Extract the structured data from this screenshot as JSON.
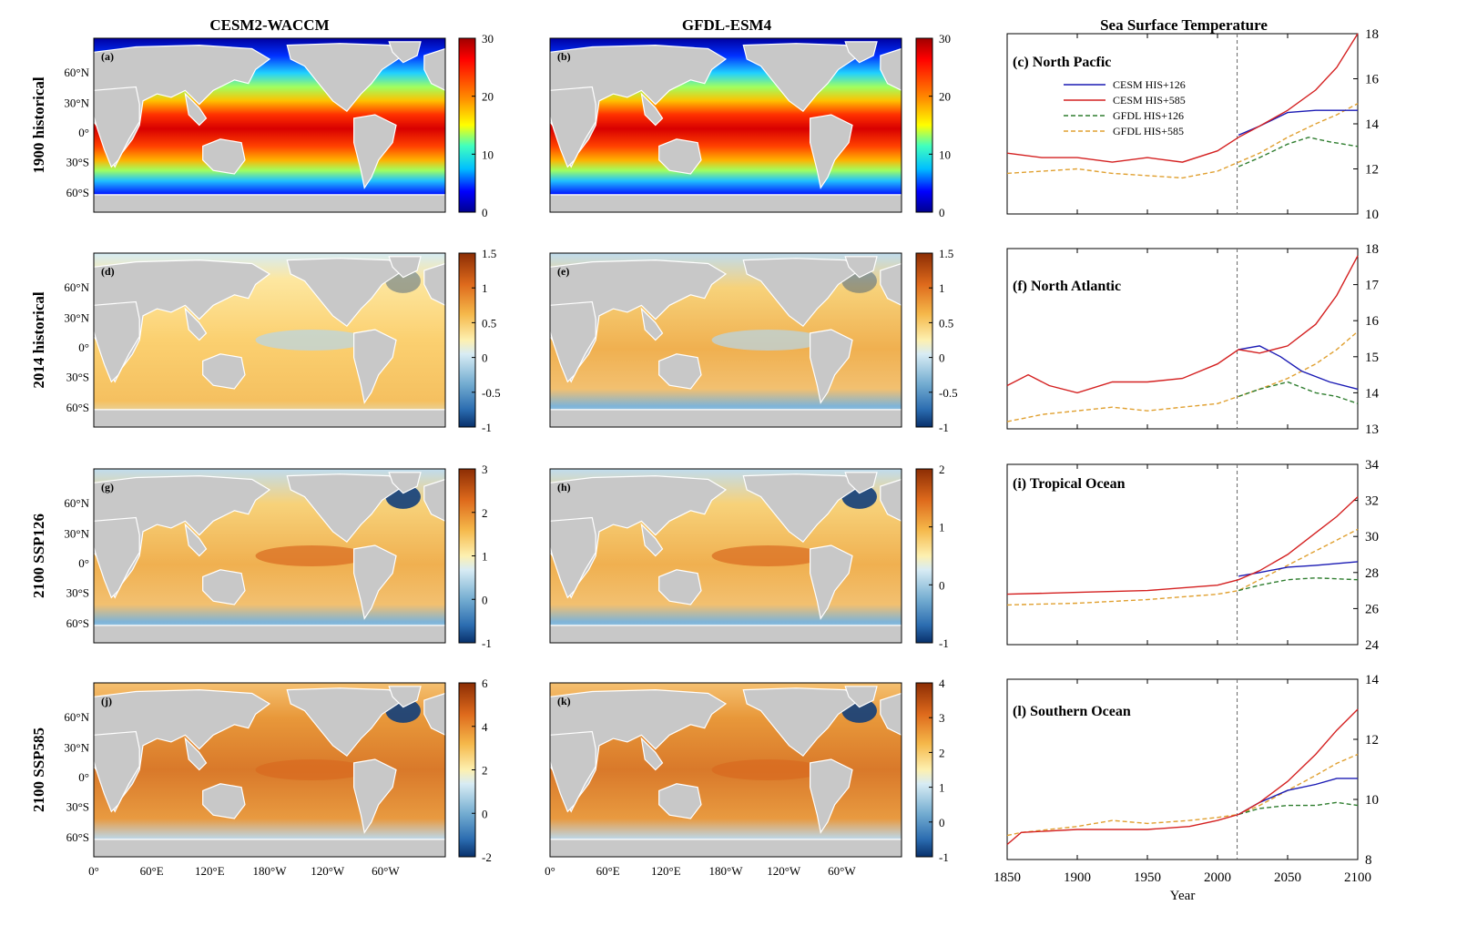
{
  "figure": {
    "col_titles": [
      "CESM2-WACCM",
      "GFDL-ESM4",
      "Sea Surface Temperature"
    ],
    "row_labels": [
      "1900 historical",
      "2014 historical",
      "2100 SSP126",
      "2100 SSP585"
    ],
    "map_lat_labels": [
      "60°N",
      "30°N",
      "0°",
      "30°S",
      "60°S"
    ],
    "map_lon_labels": [
      "0°",
      "60°E",
      "120°E",
      "180°W",
      "120°W",
      "60°W"
    ],
    "panels": [
      {
        "letter": "(a)",
        "model": "CESM2-WACCM",
        "row": "1900 historical",
        "cbar": [
          "30",
          "20",
          "10",
          "0"
        ],
        "cmap": "jet"
      },
      {
        "letter": "(b)",
        "model": "GFDL-ESM4",
        "row": "1900 historical",
        "cbar": [
          "30",
          "20",
          "10",
          "0"
        ],
        "cmap": "jet"
      },
      {
        "letter": "(d)",
        "model": "CESM2-WACCM",
        "row": "2014 historical",
        "cbar": [
          "1.5",
          "1",
          "0.5",
          "0",
          "-0.5",
          "-1"
        ],
        "cmap": "div"
      },
      {
        "letter": "(e)",
        "model": "GFDL-ESM4",
        "row": "2014 historical",
        "cbar": [
          "1.5",
          "1",
          "0.5",
          "0",
          "-0.5",
          "-1"
        ],
        "cmap": "div"
      },
      {
        "letter": "(g)",
        "model": "CESM2-WACCM",
        "row": "2100 SSP126",
        "cbar": [
          "3",
          "2",
          "1",
          "0",
          "-1"
        ],
        "cmap": "div"
      },
      {
        "letter": "(h)",
        "model": "GFDL-ESM4",
        "row": "2100 SSP126",
        "cbar": [
          "2",
          "1",
          "0",
          "-1"
        ],
        "cmap": "div"
      },
      {
        "letter": "(j)",
        "model": "CESM2-WACCM",
        "row": "2100 SSP585",
        "cbar": [
          "6",
          "4",
          "2",
          "0",
          "-2"
        ],
        "cmap": "div"
      },
      {
        "letter": "(k)",
        "model": "GFDL-ESM4",
        "row": "2100 SSP585",
        "cbar": [
          "4",
          "3",
          "2",
          "1",
          "0",
          "-1"
        ],
        "cmap": "div"
      }
    ]
  },
  "colors": {
    "cesm126": "#1a1ab4",
    "cesm585": "#d42020",
    "gfdl126": "#2e7d2e",
    "gfdl585": "#e0a030",
    "land": "#c8c8c8",
    "jet": [
      "#00008f",
      "#0000ff",
      "#00bfff",
      "#40ffbf",
      "#ffff00",
      "#ff8000",
      "#ff0000",
      "#a00000"
    ],
    "diverging": [
      "#08306b",
      "#2166ac",
      "#67a9cf",
      "#d1e5f0",
      "#fdf5c0",
      "#fddc70",
      "#f5a13c",
      "#de6a1c",
      "#a33a0e"
    ]
  },
  "chart_data": [
    {
      "type": "line",
      "title": "(c) North Pacfic",
      "xlabel": "Year",
      "ylabel": "",
      "xlim": [
        1850,
        2100
      ],
      "ylim": [
        10,
        18
      ],
      "yticks": [
        "10",
        "12",
        "14",
        "16",
        "18"
      ],
      "xticks": [
        "1850",
        "1900",
        "1950",
        "2000",
        "2050",
        "2100"
      ],
      "legend": [
        "CESM HIS+126",
        "CESM HIS+585",
        "GFDL HIS+126",
        "GFDL HIS+585"
      ],
      "series": [
        {
          "name": "CESM HIS+126",
          "x": [
            2015,
            2030,
            2050,
            2070,
            2100
          ],
          "values": [
            13.5,
            13.9,
            14.5,
            14.6,
            14.6
          ]
        },
        {
          "name": "CESM HIS+585",
          "x": [
            1850,
            1875,
            1900,
            1925,
            1950,
            1975,
            2000,
            2015,
            2030,
            2050,
            2070,
            2085,
            2100
          ],
          "values": [
            12.7,
            12.5,
            12.5,
            12.3,
            12.5,
            12.3,
            12.8,
            13.4,
            13.9,
            14.6,
            15.5,
            16.5,
            18.0
          ]
        },
        {
          "name": "GFDL HIS+126",
          "x": [
            2015,
            2030,
            2050,
            2065,
            2080,
            2100
          ],
          "values": [
            12.1,
            12.5,
            13.1,
            13.4,
            13.2,
            13.0
          ]
        },
        {
          "name": "GFDL HIS+585",
          "x": [
            1850,
            1875,
            1900,
            1925,
            1950,
            1975,
            2000,
            2015,
            2030,
            2050,
            2070,
            2085,
            2100
          ],
          "values": [
            11.8,
            11.9,
            12.0,
            11.8,
            11.7,
            11.6,
            11.9,
            12.3,
            12.7,
            13.4,
            14.0,
            14.4,
            14.9
          ]
        }
      ]
    },
    {
      "type": "line",
      "title": "(f) North Atlantic",
      "xlabel": "Year",
      "ylabel": "",
      "xlim": [
        1850,
        2100
      ],
      "ylim": [
        13,
        18
      ],
      "yticks": [
        "13",
        "14",
        "15",
        "16",
        "17",
        "18"
      ],
      "xticks": [
        "1850",
        "1900",
        "1950",
        "2000",
        "2050",
        "2100"
      ],
      "series": [
        {
          "name": "CESM HIS+126",
          "x": [
            2015,
            2030,
            2045,
            2060,
            2080,
            2100
          ],
          "values": [
            15.2,
            15.3,
            15.0,
            14.6,
            14.3,
            14.1
          ]
        },
        {
          "name": "CESM HIS+585",
          "x": [
            1850,
            1865,
            1880,
            1900,
            1925,
            1950,
            1975,
            2000,
            2015,
            2030,
            2050,
            2070,
            2085,
            2100
          ],
          "values": [
            14.2,
            14.5,
            14.2,
            14.0,
            14.3,
            14.3,
            14.4,
            14.8,
            15.2,
            15.1,
            15.3,
            15.9,
            16.7,
            17.8
          ]
        },
        {
          "name": "GFDL HIS+126",
          "x": [
            2015,
            2030,
            2050,
            2070,
            2085,
            2100
          ],
          "values": [
            13.9,
            14.1,
            14.3,
            14.0,
            13.9,
            13.7
          ]
        },
        {
          "name": "GFDL HIS+585",
          "x": [
            1850,
            1875,
            1900,
            1925,
            1950,
            1975,
            2000,
            2015,
            2030,
            2050,
            2070,
            2085,
            2100
          ],
          "values": [
            13.2,
            13.4,
            13.5,
            13.6,
            13.5,
            13.6,
            13.7,
            13.9,
            14.1,
            14.4,
            14.8,
            15.2,
            15.7
          ]
        }
      ]
    },
    {
      "type": "line",
      "title": "(i) Tropical Ocean",
      "xlabel": "Year",
      "ylabel": "",
      "xlim": [
        1850,
        2100
      ],
      "ylim": [
        24,
        34
      ],
      "yticks": [
        "24",
        "26",
        "28",
        "30",
        "32",
        "34"
      ],
      "xticks": [
        "1850",
        "1900",
        "1950",
        "2000",
        "2050",
        "2100"
      ],
      "series": [
        {
          "name": "CESM HIS+126",
          "x": [
            2015,
            2030,
            2050,
            2070,
            2100
          ],
          "values": [
            27.8,
            28.0,
            28.3,
            28.4,
            28.6
          ]
        },
        {
          "name": "CESM HIS+585",
          "x": [
            1850,
            1900,
            1950,
            2000,
            2015,
            2030,
            2050,
            2070,
            2085,
            2100
          ],
          "values": [
            26.8,
            26.9,
            27.0,
            27.3,
            27.6,
            28.1,
            29.0,
            30.2,
            31.1,
            32.2
          ]
        },
        {
          "name": "GFDL HIS+126",
          "x": [
            2015,
            2030,
            2050,
            2070,
            2100
          ],
          "values": [
            27.0,
            27.3,
            27.6,
            27.7,
            27.6
          ]
        },
        {
          "name": "GFDL HIS+585",
          "x": [
            1850,
            1900,
            1950,
            2000,
            2015,
            2030,
            2050,
            2070,
            2085,
            2100
          ],
          "values": [
            26.2,
            26.3,
            26.5,
            26.8,
            27.0,
            27.6,
            28.4,
            29.2,
            29.8,
            30.4
          ]
        }
      ]
    },
    {
      "type": "line",
      "title": "(l) Southern Ocean",
      "xlabel": "Year",
      "ylabel": "",
      "xlim": [
        1850,
        2100
      ],
      "ylim": [
        8,
        14
      ],
      "yticks": [
        "8",
        "10",
        "12",
        "14"
      ],
      "xticks": [
        "1850",
        "1900",
        "1950",
        "2000",
        "2050",
        "2100"
      ],
      "series": [
        {
          "name": "CESM HIS+126",
          "x": [
            2015,
            2030,
            2050,
            2070,
            2085,
            2100
          ],
          "values": [
            9.5,
            9.9,
            10.3,
            10.5,
            10.7,
            10.7
          ]
        },
        {
          "name": "CESM HIS+585",
          "x": [
            1850,
            1860,
            1900,
            1950,
            1980,
            2000,
            2015,
            2030,
            2050,
            2070,
            2085,
            2100
          ],
          "values": [
            8.5,
            8.9,
            9.0,
            9.0,
            9.1,
            9.3,
            9.5,
            9.9,
            10.6,
            11.5,
            12.3,
            13.0
          ]
        },
        {
          "name": "GFDL HIS+126",
          "x": [
            2015,
            2030,
            2050,
            2070,
            2085,
            2100
          ],
          "values": [
            9.5,
            9.7,
            9.8,
            9.8,
            9.9,
            9.8
          ]
        },
        {
          "name": "GFDL HIS+585",
          "x": [
            1850,
            1860,
            1900,
            1925,
            1950,
            1980,
            2000,
            2015,
            2030,
            2050,
            2070,
            2085,
            2100
          ],
          "values": [
            8.8,
            8.9,
            9.1,
            9.3,
            9.2,
            9.3,
            9.4,
            9.5,
            9.8,
            10.3,
            10.8,
            11.2,
            11.5
          ]
        }
      ]
    }
  ]
}
